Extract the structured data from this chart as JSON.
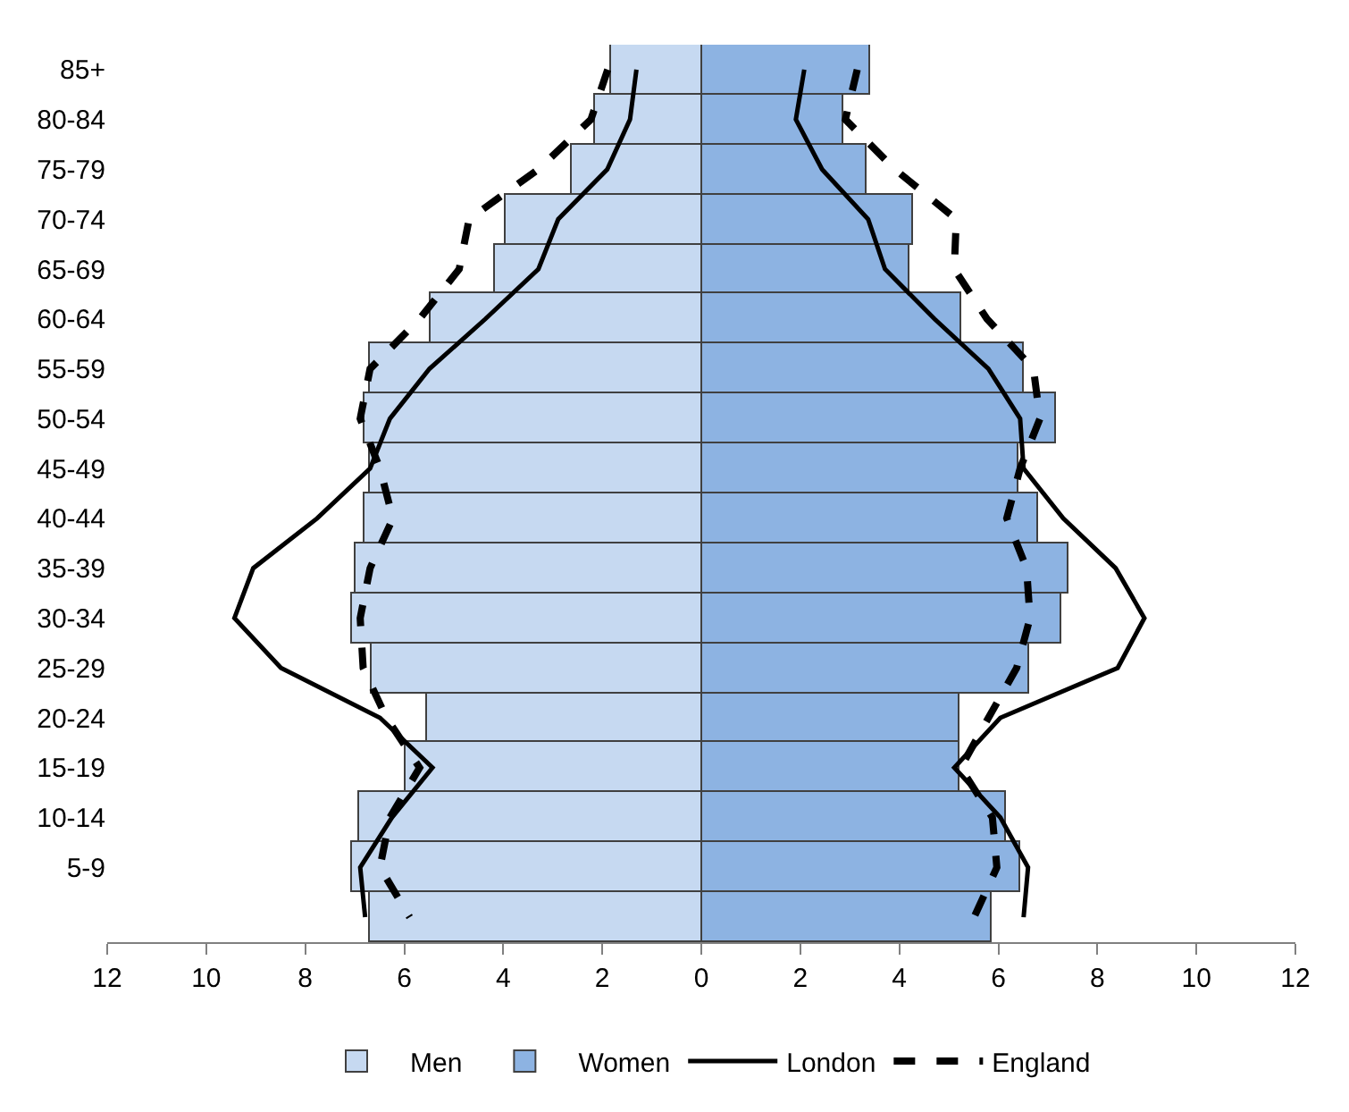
{
  "chart_data": {
    "type": "bar",
    "orientation": "horizontal",
    "categories": [
      "85+",
      "80-84",
      "75-79",
      "70-74",
      "65-69",
      "60-64",
      "55-59",
      "50-54",
      "45-49",
      "40-44",
      "35-39",
      "30-34",
      "25-29",
      "20-24",
      "15-19",
      "10-14",
      "5-9",
      null
    ],
    "series": [
      {
        "name": "Men",
        "color": "#c6d9f1",
        "values": [
          -1.83,
          -2.13,
          -2.63,
          -3.96,
          -4.16,
          -5.45,
          -6.7,
          -6.8,
          -6.7,
          -6.8,
          -7.0,
          -7.07,
          -6.67,
          -5.53,
          -5.99,
          -6.91,
          -7.07,
          -6.7
        ]
      },
      {
        "name": "Women",
        "color": "#8db3e2",
        "values": [
          3.41,
          2.87,
          3.33,
          4.29,
          4.21,
          5.24,
          6.53,
          7.17,
          6.41,
          6.8,
          7.41,
          7.29,
          6.61,
          5.23,
          5.23,
          6.15,
          6.45,
          5.87
        ]
      },
      {
        "name": "London",
        "type": "line",
        "color": "#000000",
        "line_style": "solid",
        "values": [
          -1.31,
          -1.44,
          -1.9,
          -2.89,
          -3.29,
          -4.36,
          -5.49,
          -6.29,
          -6.69,
          -7.76,
          -9.05,
          -9.43,
          -8.49,
          -6.49,
          -5.43,
          -6.25,
          -6.89,
          -6.79
        ]
      },
      {
        "type": "line",
        "color": "#000000",
        "line_style": "solid",
        "values": [
          2.08,
          1.91,
          2.44,
          3.37,
          3.71,
          4.71,
          5.8,
          6.44,
          6.51,
          7.31,
          8.37,
          8.95,
          8.41,
          6.04,
          5.11,
          6.04,
          6.6,
          6.51
        ]
      },
      {
        "name": "England",
        "type": "line",
        "color": "#000000",
        "line_style": "dashed",
        "values": [
          -1.89,
          -2.23,
          -3.29,
          -4.69,
          -4.89,
          -5.69,
          -6.69,
          -6.89,
          -6.49,
          -6.23,
          -6.69,
          -6.89,
          -6.83,
          -6.36,
          -5.69,
          -6.29,
          -6.49,
          -5.89
        ]
      },
      {
        "type": "line",
        "color": "#000000",
        "line_style": "dashed",
        "values": [
          3.15,
          2.91,
          3.91,
          5.15,
          5.11,
          5.77,
          6.71,
          6.84,
          6.44,
          6.17,
          6.57,
          6.64,
          6.37,
          5.8,
          5.24,
          5.88,
          5.97,
          5.51
        ]
      }
    ],
    "xlim": [
      -12,
      12
    ],
    "xticks": [
      {
        "value": -12,
        "label": "12"
      },
      {
        "value": -10,
        "label": "10"
      },
      {
        "value": -8,
        "label": "8"
      },
      {
        "value": -6,
        "label": "6"
      },
      {
        "value": -4,
        "label": "4"
      },
      {
        "value": -2,
        "label": "2"
      },
      0,
      2,
      4,
      6,
      8,
      10,
      12
    ],
    "legend": "bottom",
    "marker": "none",
    "stacked": true
  }
}
